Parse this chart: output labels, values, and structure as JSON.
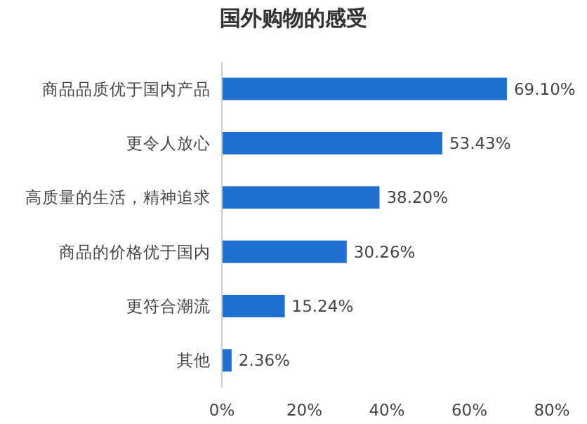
{
  "chart_data": {
    "type": "bar",
    "orientation": "horizontal",
    "title": "国外购物的感受",
    "categories": [
      "商品品质优于国内产品",
      "更令人放心",
      "高质量的生活，精神追求",
      "商品的价格优于国内",
      "更符合潮流",
      "其他"
    ],
    "values": [
      69.1,
      53.43,
      38.2,
      30.26,
      15.24,
      2.36
    ],
    "value_labels": [
      "69.10%",
      "53.43%",
      "38.20%",
      "30.26%",
      "15.24%",
      "2.36%"
    ],
    "color": "#1f6fd1",
    "xlim": [
      0,
      80
    ],
    "xticks": [
      {
        "value": 0,
        "label": "0%"
      },
      {
        "value": 20,
        "label": "20%"
      },
      {
        "value": 40,
        "label": "40%"
      },
      {
        "value": 60,
        "label": "60%"
      },
      {
        "value": 80,
        "label": "80%"
      }
    ]
  }
}
